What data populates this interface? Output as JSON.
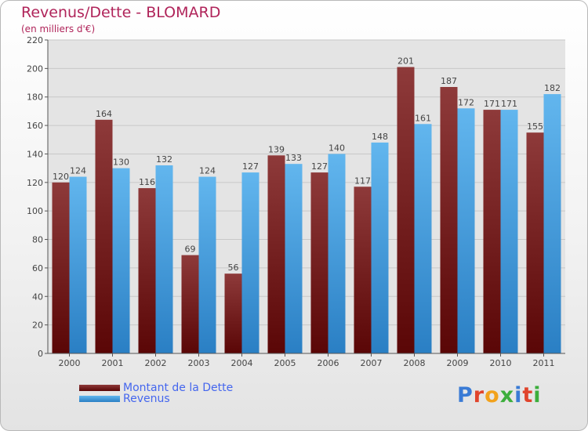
{
  "header": {
    "title": "Revenus/Dette - BLOMARD",
    "subtitle": "(en milliers d'€)"
  },
  "legend": {
    "items": [
      {
        "label": "Montant de la Dette",
        "color": "#6b1010"
      },
      {
        "label": "Revenus",
        "color": "#3a9ee4"
      }
    ]
  },
  "logo": {
    "letters": [
      "P",
      "r",
      "o",
      "x",
      "i",
      "t",
      "i"
    ]
  },
  "colors": {
    "debt_dark": "#5a0606",
    "debt_light": "#8e3a3a",
    "revenue_dark": "#2a7fc4",
    "revenue_light": "#62b6ee",
    "label_text": "#444444",
    "axis": "#555555"
  },
  "chart_data": {
    "type": "bar",
    "categories": [
      "2000",
      "2001",
      "2002",
      "2003",
      "2004",
      "2005",
      "2006",
      "2007",
      "2008",
      "2009",
      "2010",
      "2011"
    ],
    "series": [
      {
        "name": "Montant de la Dette",
        "values": [
          120,
          164,
          116,
          69,
          56,
          139,
          127,
          117,
          201,
          187,
          171,
          155
        ]
      },
      {
        "name": "Revenus",
        "values": [
          124,
          130,
          132,
          124,
          127,
          133,
          140,
          148,
          161,
          172,
          171,
          182
        ]
      }
    ],
    "title": "Revenus/Dette - BLOMARD",
    "ylabel": "(en milliers d'€)",
    "ylim": [
      0,
      220
    ],
    "yticks": [
      0,
      20,
      40,
      60,
      80,
      100,
      120,
      140,
      160,
      180,
      200,
      220
    ],
    "grid": true,
    "legend": "bottom-left"
  }
}
